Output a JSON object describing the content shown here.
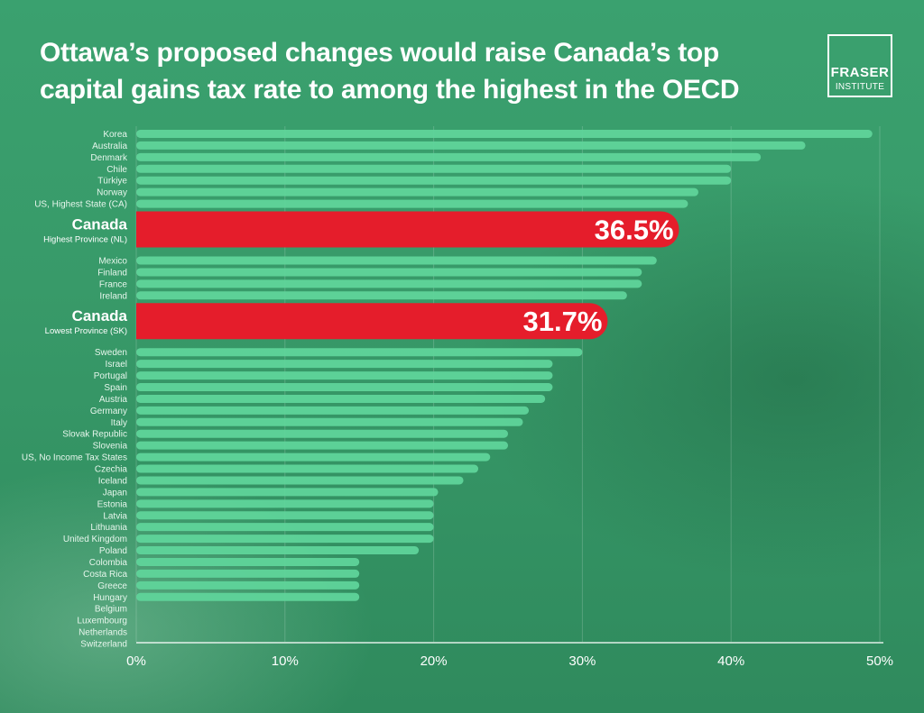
{
  "header": {
    "title_line1": "Ottawa’s proposed changes would raise Canada’s top",
    "title_line2": "capital gains tax rate to among the highest in the OECD"
  },
  "logo": {
    "line1": "FRASER",
    "line2": "INSTITUTE"
  },
  "colors": {
    "bar": "#5fd49a",
    "highlight": "#e51d2b",
    "grid": "#ffffff",
    "background": "#3aa16f"
  },
  "chart_data": {
    "type": "bar",
    "orientation": "horizontal",
    "title": "Ottawa’s proposed changes would raise Canada’s top capital gains tax rate to among the highest in the OECD",
    "xlim": [
      0,
      50
    ],
    "xticks": [
      0,
      10,
      20,
      30,
      40,
      50
    ],
    "xtick_labels": [
      "0%",
      "10%",
      "20%",
      "30%",
      "40%",
      "50%"
    ],
    "grid": true,
    "items": [
      {
        "label": "Korea",
        "value": 49.5
      },
      {
        "label": "Australia",
        "value": 45
      },
      {
        "label": "Denmark",
        "value": 42
      },
      {
        "label": "Chile",
        "value": 40
      },
      {
        "label": "Türkiye",
        "value": 40
      },
      {
        "label": "Norway",
        "value": 37.8
      },
      {
        "label": "US, Highest State (CA)",
        "value": 37.1
      },
      {
        "label": "Canada",
        "sublabel": "Highest Province (NL)",
        "value": 36.5,
        "value_label": "36.5%",
        "highlight": true
      },
      {
        "label": "Mexico",
        "value": 35
      },
      {
        "label": "Finland",
        "value": 34
      },
      {
        "label": "France",
        "value": 34
      },
      {
        "label": "Ireland",
        "value": 33
      },
      {
        "label": "Canada",
        "sublabel": "Lowest Province (SK)",
        "value": 31.7,
        "value_label": "31.7%",
        "highlight": true
      },
      {
        "label": "Sweden",
        "value": 30
      },
      {
        "label": "Israel",
        "value": 28
      },
      {
        "label": "Portugal",
        "value": 28
      },
      {
        "label": "Spain",
        "value": 28
      },
      {
        "label": "Austria",
        "value": 27.5
      },
      {
        "label": "Germany",
        "value": 26.4
      },
      {
        "label": "Italy",
        "value": 26
      },
      {
        "label": "Slovak Republic",
        "value": 25
      },
      {
        "label": "Slovenia",
        "value": 25
      },
      {
        "label": "US, No Income Tax States",
        "value": 23.8
      },
      {
        "label": "Czechia",
        "value": 23
      },
      {
        "label": "Iceland",
        "value": 22
      },
      {
        "label": "Japan",
        "value": 20.3
      },
      {
        "label": "Estonia",
        "value": 20
      },
      {
        "label": "Latvia",
        "value": 20
      },
      {
        "label": "Lithuania",
        "value": 20
      },
      {
        "label": "United Kingdom",
        "value": 20
      },
      {
        "label": "Poland",
        "value": 19
      },
      {
        "label": "Colombia",
        "value": 15
      },
      {
        "label": "Costa Rica",
        "value": 15
      },
      {
        "label": "Greece",
        "value": 15
      },
      {
        "label": "Hungary",
        "value": 15
      },
      {
        "label": "Belgium",
        "value": 0
      },
      {
        "label": "Luxembourg",
        "value": 0
      },
      {
        "label": "Netherlands",
        "value": 0
      },
      {
        "label": "Switzerland",
        "value": 0
      }
    ]
  }
}
